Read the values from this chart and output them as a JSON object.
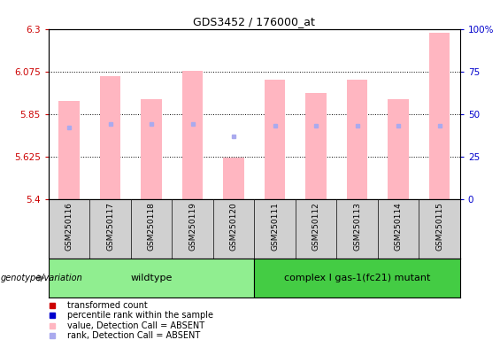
{
  "title": "GDS3452 / 176000_at",
  "samples": [
    "GSM250116",
    "GSM250117",
    "GSM250118",
    "GSM250119",
    "GSM250120",
    "GSM250111",
    "GSM250112",
    "GSM250113",
    "GSM250114",
    "GSM250115"
  ],
  "transformed_count": [
    5.92,
    6.05,
    5.93,
    6.08,
    5.62,
    6.03,
    5.96,
    6.03,
    5.93,
    6.28
  ],
  "percentile_rank": [
    0.42,
    0.44,
    0.44,
    0.44,
    0.37,
    0.43,
    0.43,
    0.43,
    0.43,
    0.43
  ],
  "y_min": 5.4,
  "y_max": 6.3,
  "y_ticks": [
    5.4,
    5.625,
    5.85,
    6.075,
    6.3
  ],
  "y_tick_labels": [
    "5.4",
    "5.625",
    "5.85",
    "6.075",
    "6.3"
  ],
  "y2_ticks": [
    0,
    25,
    50,
    75,
    100
  ],
  "y2_tick_labels": [
    "0",
    "25",
    "50",
    "75",
    "100%"
  ],
  "bar_color_absent": "#ffb6c1",
  "dot_color_absent": "#aaaaee",
  "bar_width": 0.5,
  "plot_bg_color": "#ffffff",
  "tick_color_left": "#cc0000",
  "tick_color_right": "#0000cc",
  "wildtype_color": "#90ee90",
  "mutant_color": "#44cc44",
  "legend_items": [
    {
      "color": "#cc0000",
      "label": "transformed count"
    },
    {
      "color": "#0000cc",
      "label": "percentile rank within the sample"
    },
    {
      "color": "#ffb6c1",
      "label": "value, Detection Call = ABSENT"
    },
    {
      "color": "#aaaaee",
      "label": "rank, Detection Call = ABSENT"
    }
  ],
  "genotype_label": "genotype/variation",
  "grp_spans": [
    [
      0,
      5,
      "wildtype"
    ],
    [
      5,
      10,
      "complex I gas-1(fc21) mutant"
    ]
  ]
}
